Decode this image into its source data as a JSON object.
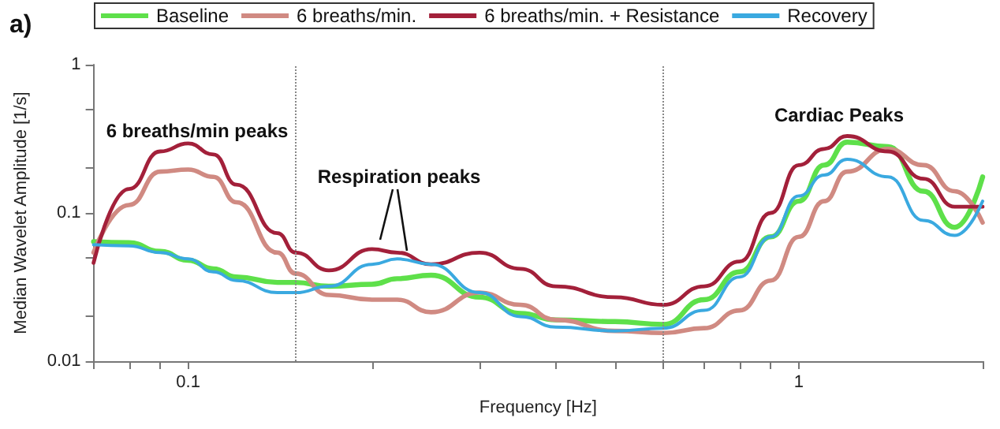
{
  "chart_data": {
    "type": "line",
    "xlabel": "Frequency [Hz]",
    "ylabel": "Median Wavelet Amplitude [1/s]",
    "log": "xy",
    "grid": false,
    "legend": "top",
    "marker": "none",
    "line_style": "solid",
    "x": [
      0.07,
      0.08,
      0.09,
      0.1,
      0.11,
      0.12,
      0.14,
      0.15,
      0.17,
      0.2,
      0.22,
      0.25,
      0.3,
      0.35,
      0.4,
      0.5,
      0.6,
      0.7,
      0.8,
      0.9,
      1,
      1.1,
      1.2,
      1.4,
      1.6,
      1.8,
      2
    ],
    "xlim": [
      0.07,
      2
    ],
    "ylim": [
      0.01,
      1
    ],
    "xticks": [
      {
        "value": 0.07,
        "label": null
      },
      {
        "value": 0.08,
        "label": null
      },
      {
        "value": 0.09,
        "label": null
      },
      0.1,
      {
        "value": 0.2,
        "label": null
      },
      {
        "value": 0.3,
        "label": null
      },
      {
        "value": 0.4,
        "label": null
      },
      {
        "value": 0.5,
        "label": null
      },
      {
        "value": 0.6,
        "label": null
      },
      {
        "value": 0.7,
        "label": null
      },
      {
        "value": 0.8,
        "label": null
      },
      {
        "value": 0.9,
        "label": null
      },
      1,
      {
        "value": 2,
        "label": null
      }
    ],
    "yticks": [
      0.01,
      {
        "value": 0.02,
        "label": null
      },
      {
        "value": 0.05,
        "label": null
      },
      0.1,
      {
        "value": 0.2,
        "label": null
      },
      {
        "value": 0.5,
        "label": null
      },
      1
    ],
    "series": [
      {
        "name": "Baseline",
        "color": "#5ee04a",
        "values": [
          0.064,
          0.063,
          0.055,
          0.048,
          0.042,
          0.037,
          0.034,
          0.034,
          0.032,
          0.033,
          0.036,
          0.038,
          0.027,
          0.021,
          0.019,
          0.0185,
          0.0177,
          0.026,
          0.04,
          0.069,
          0.12,
          0.21,
          0.3,
          0.28,
          0.14,
          0.08,
          0.175
        ]
      },
      {
        "name": "6 breaths/min.",
        "color": "#d08a82",
        "values": [
          0.054,
          0.113,
          0.19,
          0.196,
          0.175,
          0.118,
          0.054,
          0.039,
          0.028,
          0.026,
          0.026,
          0.0214,
          0.029,
          0.024,
          0.019,
          0.016,
          0.0155,
          0.0167,
          0.022,
          0.035,
          0.069,
          0.12,
          0.19,
          0.27,
          0.21,
          0.14,
          0.086
        ]
      },
      {
        "name": "6 breaths/min. + Resistance",
        "color": "#a3203a",
        "values": [
          0.046,
          0.145,
          0.26,
          0.294,
          0.248,
          0.155,
          0.073,
          0.054,
          0.041,
          0.057,
          0.054,
          0.045,
          0.054,
          0.042,
          0.032,
          0.027,
          0.024,
          0.032,
          0.047,
          0.1,
          0.21,
          0.27,
          0.33,
          0.26,
          0.17,
          0.11,
          0.11
        ]
      },
      {
        "name": "Recovery",
        "color": "#3aa9e0",
        "values": [
          0.061,
          0.06,
          0.054,
          0.049,
          0.04,
          0.035,
          0.029,
          0.029,
          0.032,
          0.045,
          0.049,
          0.045,
          0.029,
          0.02,
          0.017,
          0.016,
          0.0167,
          0.022,
          0.037,
          0.069,
          0.13,
          0.18,
          0.23,
          0.175,
          0.089,
          0.0705,
          0.12
        ]
      }
    ],
    "ref_lines": [
      {
        "axis": "x",
        "value": 0.15,
        "color": "#888888",
        "line_style": "dotted"
      },
      {
        "axis": "x",
        "value": 0.6,
        "color": "#888888",
        "line_style": "dotted"
      }
    ],
    "annotations": [
      "a)",
      "6 breaths/min peaks",
      "Respiration peaks",
      "Cardiac Peaks"
    ]
  }
}
